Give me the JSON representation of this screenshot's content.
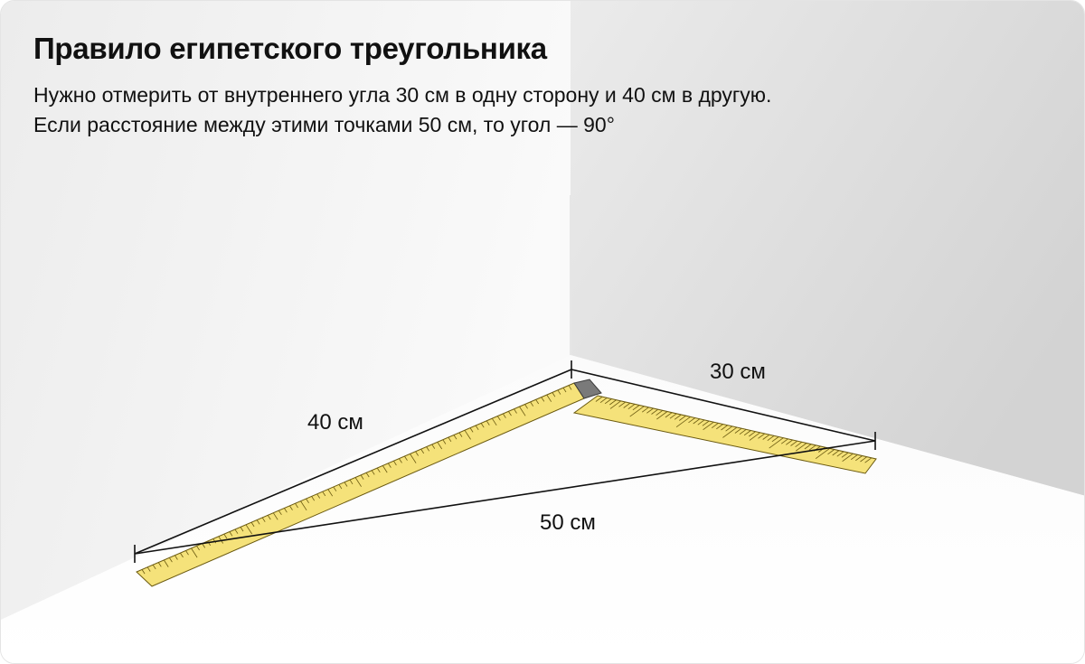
{
  "header": {
    "title": "Правило египетского треугольника",
    "subtitle_line1": "Нужно отмерить от внутреннего угла 30 см в одну сторону и 40 см в другую.",
    "subtitle_line2": "Если расстояние между этими точками 50 см, то угол — 90°"
  },
  "diagram": {
    "labels": {
      "left_side": "40 см",
      "right_side": "30 см",
      "hypotenuse": "50 см"
    }
  },
  "colors": {
    "ruler_fill": "#f5e27a",
    "ruler_stroke": "#6b5a10",
    "corner_block": "#7a7a7a",
    "line": "#111111"
  }
}
